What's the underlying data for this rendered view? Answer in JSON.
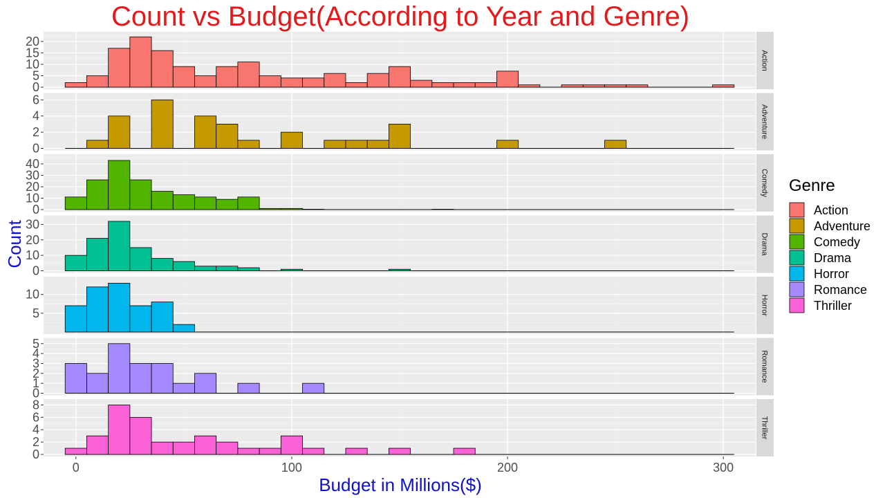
{
  "chart_data": {
    "type": "bar",
    "subtype": "faceted-histogram",
    "title": "Count vs Budget(According to Year and Genre)",
    "xlabel": "Budget in Millions($)",
    "ylabel": "Count",
    "xlim": [
      -15,
      315
    ],
    "x_ticks": [
      0,
      100,
      200,
      300
    ],
    "bin_width": 10,
    "bin_starts": [
      -5,
      5,
      15,
      25,
      35,
      45,
      55,
      65,
      75,
      85,
      95,
      105,
      115,
      125,
      135,
      145,
      155,
      165,
      175,
      185,
      195,
      205,
      215,
      225,
      235,
      245,
      255,
      265,
      275,
      285,
      295
    ],
    "grid": true,
    "legend": {
      "title": "Genre",
      "position": "right"
    },
    "colors": {
      "title": "#e31a1c",
      "axis_label": "#1010cc",
      "panel_bg": "#ebebeb",
      "strip_bg": "#d9d9d9",
      "grid_major": "#ffffff",
      "bar_outline": "#000000"
    },
    "series": [
      {
        "name": "Action",
        "color": "#F8766D",
        "yticks": [
          0,
          5,
          10,
          15,
          20
        ],
        "ymax": 23,
        "values": [
          2,
          5,
          17,
          22,
          16,
          9,
          5,
          9,
          11,
          5,
          4,
          4,
          6,
          2,
          6,
          9,
          3,
          2,
          2,
          2,
          7,
          1,
          0,
          1,
          1,
          1,
          1,
          0,
          0,
          0,
          1
        ]
      },
      {
        "name": "Adventure",
        "color": "#C49A00",
        "yticks": [
          0,
          2,
          4,
          6
        ],
        "ymax": 6.5,
        "values": [
          0,
          1,
          4,
          0,
          6,
          0,
          4,
          3,
          1,
          0,
          2,
          0,
          1,
          1,
          1,
          3,
          0,
          0,
          0,
          0,
          1,
          0,
          0,
          0,
          0,
          1,
          0,
          0,
          0,
          0,
          0
        ]
      },
      {
        "name": "Comedy",
        "color": "#53B400",
        "yticks": [
          0,
          10,
          20,
          30,
          40
        ],
        "ymax": 46,
        "values": [
          11,
          26,
          43,
          26,
          16,
          13,
          11,
          9,
          11,
          1,
          1,
          0.3,
          0,
          0,
          0,
          0,
          0,
          0.3,
          0,
          0,
          0,
          0,
          0,
          0,
          0,
          0,
          0,
          0,
          0,
          0,
          0
        ]
      },
      {
        "name": "Drama",
        "color": "#00C094",
        "yticks": [
          0,
          10,
          20,
          30
        ],
        "ymax": 34,
        "values": [
          10,
          21,
          32,
          15,
          8,
          6,
          3,
          3,
          2,
          0,
          1,
          0,
          0,
          0,
          0,
          1,
          0,
          0,
          0,
          0,
          0,
          0,
          0,
          0,
          0,
          0,
          0,
          0,
          0,
          0,
          0
        ]
      },
      {
        "name": "Horror",
        "color": "#00B6EB",
        "yticks": [
          5,
          10
        ],
        "ymax": 14,
        "values": [
          7,
          12,
          13,
          7,
          8,
          2,
          0,
          0,
          0,
          0,
          0,
          0,
          0,
          0,
          0,
          0,
          0,
          0,
          0,
          0,
          0,
          0,
          0,
          0,
          0,
          0,
          0,
          0,
          0,
          0,
          0
        ]
      },
      {
        "name": "Romance",
        "color": "#A58AFF",
        "yticks": [
          0,
          1,
          2,
          3,
          4,
          5
        ],
        "ymax": 5.3,
        "values": [
          3,
          2,
          5,
          3,
          3,
          1,
          2,
          0,
          1,
          0,
          0,
          1,
          0,
          0,
          0,
          0,
          0,
          0,
          0,
          0,
          0,
          0,
          0,
          0,
          0,
          0,
          0,
          0,
          0,
          0,
          0
        ]
      },
      {
        "name": "Thriller",
        "color": "#FB61D7",
        "yticks": [
          0,
          2,
          4,
          6,
          8
        ],
        "ymax": 8.5,
        "values": [
          1,
          3,
          8,
          6,
          2,
          2,
          3,
          2,
          1,
          1,
          3,
          1,
          0,
          1,
          0,
          1,
          0,
          0,
          1,
          0,
          0,
          0,
          0,
          0,
          0,
          0,
          0,
          0,
          0,
          0,
          0
        ]
      }
    ]
  }
}
